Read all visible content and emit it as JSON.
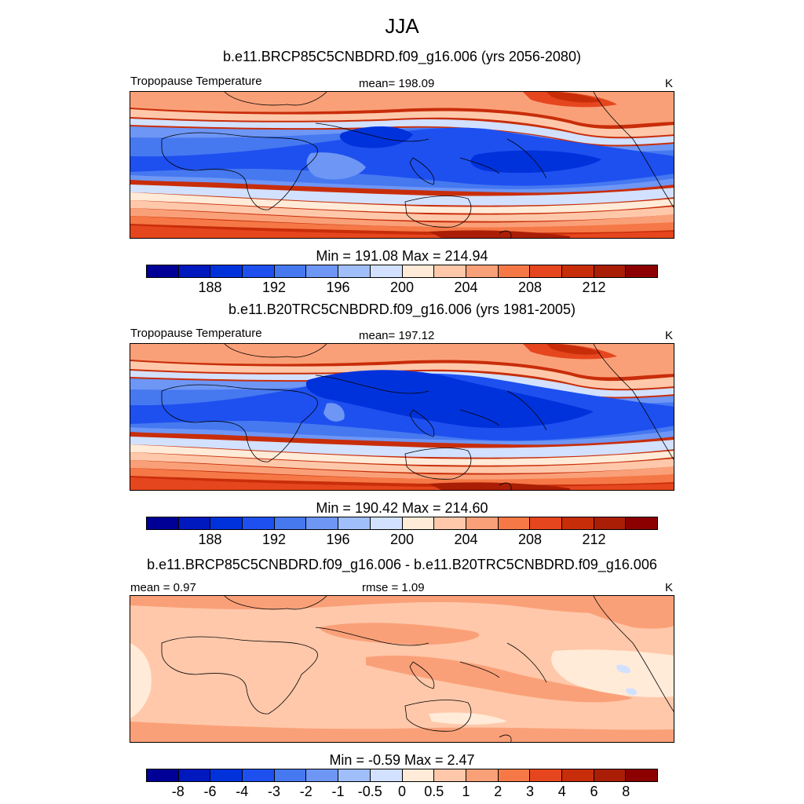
{
  "title": "JJA",
  "panels": [
    {
      "case_title": "b.e11.BRCP85C5CNBDRD.f09_g16.006 (yrs 2056-2080)",
      "left_label": "Tropopause Temperature",
      "center_label": "mean= 198.09",
      "units": "K",
      "minmax": "Min = 191.08 Max = 214.94",
      "colorbar_ticks": [
        "188",
        "192",
        "196",
        "200",
        "204",
        "208",
        "212"
      ]
    },
    {
      "case_title": "b.e11.B20TRC5CNBDRD.f09_g16.006 (yrs 1981-2005)",
      "left_label": "Tropopause Temperature",
      "center_label": "mean= 197.12",
      "units": "K",
      "minmax": "Min = 190.42 Max = 214.60",
      "colorbar_ticks": [
        "188",
        "192",
        "196",
        "200",
        "204",
        "208",
        "212"
      ]
    },
    {
      "case_title": "b.e11.BRCP85C5CNBDRD.f09_g16.006 - b.e11.B20TRC5CNBDRD.f09_g16.006",
      "left_label": "mean =   0.97",
      "center_label": "rmse =   1.09",
      "units": "K",
      "minmax": "Min =  -0.59 Max =   2.47",
      "colorbar_ticks": [
        "-8",
        "-6",
        "-4",
        "-3",
        "-2",
        "-1",
        "-0.5",
        "0",
        "0.5",
        "1",
        "2",
        "3",
        "4",
        "6",
        "8"
      ]
    }
  ],
  "colors": {
    "palette": [
      "#000096",
      "#0019BE",
      "#0032DC",
      "#1E50F0",
      "#4678F0",
      "#6E96F5",
      "#A0BEFA",
      "#D2E1FF",
      "#FFEBD7",
      "#FFC8AA",
      "#FAA078",
      "#F57846",
      "#E6461E",
      "#C82D0A",
      "#AA1E05",
      "#8C0000"
    ],
    "coastline": "#000000"
  },
  "chart_data": [
    {
      "type": "heatmap",
      "title": "JJA",
      "subtitle": "b.e11.BRCP85C5CNBDRD.f09_g16.006 (yrs 2056-2080)",
      "variable": "Tropopause Temperature",
      "units": "K",
      "mean": 198.09,
      "min": 191.08,
      "max": 214.94,
      "contour_levels": [
        186,
        188,
        190,
        192,
        194,
        196,
        198,
        200,
        202,
        204,
        206,
        208,
        210,
        212,
        214
      ],
      "tick_labels": [
        188,
        192,
        196,
        200,
        204,
        208,
        212
      ]
    },
    {
      "type": "heatmap",
      "subtitle": "b.e11.B20TRC5CNBDRD.f09_g16.006 (yrs 1981-2005)",
      "variable": "Tropopause Temperature",
      "units": "K",
      "mean": 197.12,
      "min": 190.42,
      "max": 214.6,
      "contour_levels": [
        186,
        188,
        190,
        192,
        194,
        196,
        198,
        200,
        202,
        204,
        206,
        208,
        210,
        212,
        214
      ],
      "tick_labels": [
        188,
        192,
        196,
        200,
        204,
        208,
        212
      ]
    },
    {
      "type": "heatmap",
      "subtitle": "b.e11.BRCP85C5CNBDRD.f09_g16.006 - b.e11.B20TRC5CNBDRD.f09_g16.006",
      "units": "K",
      "mean": 0.97,
      "rmse": 1.09,
      "min": -0.59,
      "max": 2.47,
      "contour_levels": [
        -8,
        -6,
        -4,
        -3,
        -2,
        -1,
        -0.5,
        0,
        0.5,
        1,
        2,
        3,
        4,
        6,
        8
      ],
      "tick_labels": [
        -8,
        -6,
        -4,
        -3,
        -2,
        -1,
        -0.5,
        0,
        0.5,
        1,
        2,
        3,
        4,
        6,
        8
      ]
    }
  ]
}
